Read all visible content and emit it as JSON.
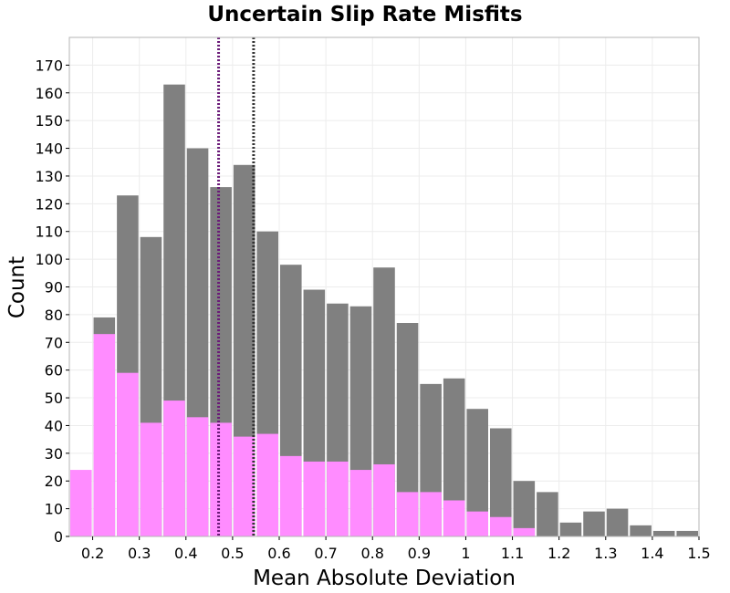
{
  "chart_data": {
    "type": "bar",
    "title": "Uncertain Slip Rate Misfits",
    "xlabel": "Mean Absolute Deviation",
    "ylabel": "Count",
    "xlim": [
      0.15,
      1.5
    ],
    "ylim": [
      0,
      180
    ],
    "x_ticks": [
      "0.2",
      "0.3",
      "0.4",
      "0.5",
      "0.6",
      "0.7",
      "0.8",
      "0.9",
      "1",
      "1.1",
      "1.2",
      "1.3",
      "1.4",
      "1.5"
    ],
    "x_tick_values": [
      0.2,
      0.3,
      0.4,
      0.5,
      0.6,
      0.7,
      0.8,
      0.9,
      1.0,
      1.1,
      1.2,
      1.3,
      1.4,
      1.5
    ],
    "y_ticks": [
      "0",
      "10",
      "20",
      "30",
      "40",
      "50",
      "60",
      "70",
      "80",
      "90",
      "100",
      "110",
      "120",
      "130",
      "140",
      "150",
      "160",
      "170"
    ],
    "y_tick_values": [
      0,
      10,
      20,
      30,
      40,
      50,
      60,
      70,
      80,
      90,
      100,
      110,
      120,
      130,
      140,
      150,
      160,
      170
    ],
    "grid": true,
    "bin_width": 0.05,
    "bin_starts": [
      0.15,
      0.2,
      0.25,
      0.3,
      0.35,
      0.4,
      0.45,
      0.5,
      0.55,
      0.6,
      0.65,
      0.7,
      0.75,
      0.8,
      0.85,
      0.9,
      0.95,
      1.0,
      1.05,
      1.1,
      1.15,
      1.2,
      1.25,
      1.3,
      1.35,
      1.4,
      1.45
    ],
    "series": [
      {
        "color": "#808080",
        "values": [
          0,
          79,
          123,
          108,
          163,
          140,
          126,
          134,
          110,
          98,
          89,
          84,
          83,
          97,
          77,
          55,
          57,
          46,
          39,
          20,
          16,
          5,
          9,
          10,
          4,
          2,
          2
        ]
      },
      {
        "color": "#ff8cff",
        "values": [
          24,
          73,
          59,
          41,
          49,
          43,
          41,
          36,
          37,
          29,
          27,
          27,
          24,
          26,
          16,
          16,
          13,
          9,
          7,
          3,
          0,
          0,
          0,
          0,
          0,
          0,
          0
        ]
      }
    ],
    "vlines": [
      {
        "x": 0.47,
        "color": "#6a1b78"
      },
      {
        "x": 0.545,
        "color": "#333333"
      }
    ]
  }
}
